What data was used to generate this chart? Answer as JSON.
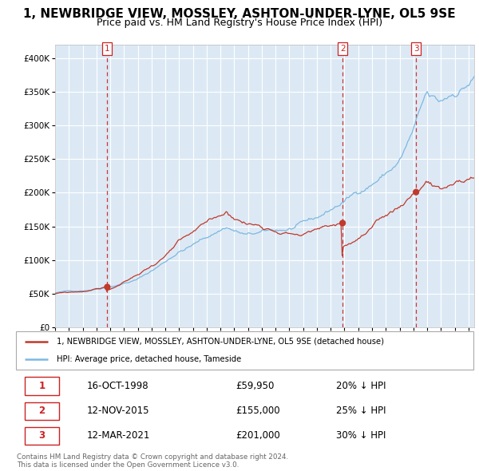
{
  "title": "1, NEWBRIDGE VIEW, MOSSLEY, ASHTON-UNDER-LYNE, OL5 9SE",
  "subtitle": "Price paid vs. HM Land Registry's House Price Index (HPI)",
  "title_fontsize": 11,
  "subtitle_fontsize": 9,
  "hpi_color": "#7db8e0",
  "price_color": "#c0392b",
  "bg_color": "#dce9f5",
  "grid_color": "#ffffff",
  "sale_dates": [
    "1998-10-16",
    "2015-11-12",
    "2021-03-12"
  ],
  "sale_prices": [
    59950,
    155000,
    201000
  ],
  "sale_labels": [
    "1",
    "2",
    "3"
  ],
  "legend_property": "1, NEWBRIDGE VIEW, MOSSLEY, ASHTON-UNDER-LYNE, OL5 9SE (detached house)",
  "legend_hpi": "HPI: Average price, detached house, Tameside",
  "table_entries": [
    {
      "label": "1",
      "date": "16-OCT-1998",
      "price": "£59,950",
      "hpi_note": "20% ↓ HPI"
    },
    {
      "label": "2",
      "date": "12-NOV-2015",
      "price": "£155,000",
      "hpi_note": "25% ↓ HPI"
    },
    {
      "label": "3",
      "date": "12-MAR-2021",
      "price": "£201,000",
      "hpi_note": "30% ↓ HPI"
    }
  ],
  "copyright_text": "Contains HM Land Registry data © Crown copyright and database right 2024.\nThis data is licensed under the Open Government Licence v3.0.",
  "ylim": [
    0,
    420000
  ],
  "yticks": [
    0,
    50000,
    100000,
    150000,
    200000,
    250000,
    300000,
    350000,
    400000
  ]
}
